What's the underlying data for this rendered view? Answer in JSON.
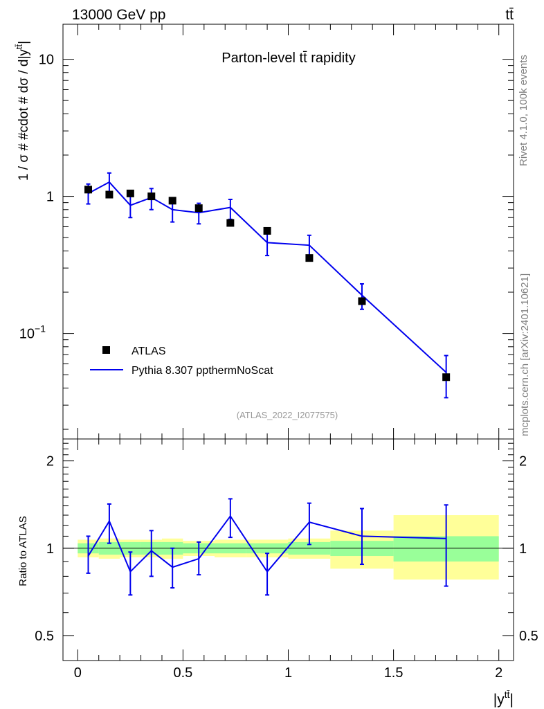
{
  "header": {
    "energy_label": "13000 GeV pp",
    "process_label": "tt̄"
  },
  "side_text": {
    "rivet": "Rivet 4.1.0,  100k events",
    "mcplots": "mcplots.cern.ch [arXiv:2401.10621]"
  },
  "colors": {
    "data_marker": "#000000",
    "mc_line": "#0000ee",
    "band_inner": "#99ff99",
    "band_outer": "#ffff99",
    "ref_text": "#999999",
    "side_text": "#808080"
  },
  "chart_data": [
    {
      "type": "scatter",
      "panel": "main",
      "title": "Parton-level tt̄ rapidity",
      "ylabel": "1 / σ # #cdot # dσ / d|y^{tt̄}|",
      "ylabel_display": "1 / σ # #cdot # dσ / d|y",
      "ylabel_sup": "tt̄",
      "ylabel_end": "|",
      "xlabel": "|y^{tt̄}|",
      "xlabel_main": "|y",
      "xlabel_sup": "tt̄",
      "xlabel_end": "|",
      "yscale": "log",
      "xlim": [
        -0.07,
        2.07
      ],
      "ylim": [
        0.017,
        18
      ],
      "yticks": [
        {
          "value": 0.1,
          "base": "10",
          "exp": "−1"
        },
        {
          "value": 1,
          "base": "1",
          "exp": ""
        },
        {
          "value": 10,
          "base": "10",
          "exp": ""
        }
      ],
      "reference_label": "(ATLAS_2022_I2077575)",
      "legend_position": "lower-left",
      "legend": [
        {
          "name": "ATLAS",
          "kind": "marker"
        },
        {
          "name": "Pythia 8.307 ppthermNoScat",
          "kind": "line"
        }
      ],
      "series": [
        {
          "name": "ATLAS",
          "x": [
            0.05,
            0.15,
            0.25,
            0.35,
            0.45,
            0.575,
            0.725,
            0.9,
            1.1,
            1.35,
            1.75
          ],
          "y": [
            1.12,
            1.03,
            1.05,
            1.0,
            0.93,
            0.82,
            0.64,
            0.56,
            0.355,
            0.172,
            0.048
          ]
        },
        {
          "name": "Pythia 8.307 ppthermNoScat",
          "x": [
            0.05,
            0.15,
            0.25,
            0.35,
            0.45,
            0.575,
            0.725,
            0.9,
            1.1,
            1.35,
            1.75
          ],
          "y": [
            1.05,
            1.27,
            0.86,
            0.98,
            0.8,
            0.76,
            0.83,
            0.46,
            0.44,
            0.19,
            0.052
          ],
          "yerr_low": [
            0.88,
            1.06,
            0.7,
            0.8,
            0.65,
            0.63,
            0.68,
            0.37,
            0.35,
            0.15,
            0.034
          ],
          "yerr_high": [
            1.23,
            1.48,
            1.03,
            1.14,
            0.96,
            0.89,
            0.95,
            0.55,
            0.52,
            0.23,
            0.069
          ]
        }
      ]
    },
    {
      "type": "line",
      "panel": "ratio",
      "ylabel": "Ratio to ATLAS",
      "xlabel": "|y^{tt̄}|",
      "xlim": [
        -0.07,
        2.07
      ],
      "ylim": [
        0.41,
        2.38
      ],
      "yscale": "log",
      "xticks": [
        0,
        0.5,
        1,
        1.5,
        2
      ],
      "xtick_labels": [
        "0",
        "0.5",
        "1",
        "1.5",
        "2"
      ],
      "yticks": [
        0.5,
        1,
        2
      ],
      "ytick_labels": [
        "0.5",
        "1",
        "2"
      ],
      "bands": {
        "edges": [
          0,
          0.1,
          0.2,
          0.3,
          0.4,
          0.5,
          0.65,
          0.8,
          1.0,
          1.2,
          1.5,
          2.0
        ],
        "inner_low": [
          0.96,
          0.95,
          0.95,
          0.95,
          0.95,
          0.96,
          0.96,
          0.96,
          0.95,
          0.94,
          0.9
        ],
        "inner_high": [
          1.04,
          1.05,
          1.05,
          1.05,
          1.05,
          1.04,
          1.04,
          1.04,
          1.05,
          1.06,
          1.1
        ],
        "outer_low": [
          0.93,
          0.92,
          0.93,
          0.93,
          0.92,
          0.94,
          0.93,
          0.93,
          0.92,
          0.85,
          0.78
        ],
        "outer_high": [
          1.07,
          1.08,
          1.07,
          1.07,
          1.08,
          1.06,
          1.07,
          1.07,
          1.08,
          1.15,
          1.3
        ]
      },
      "series": [
        {
          "name": "Pythia 8.307 ppthermNoScat / ATLAS",
          "x": [
            0.05,
            0.15,
            0.25,
            0.35,
            0.45,
            0.575,
            0.725,
            0.9,
            1.1,
            1.35,
            1.75
          ],
          "y": [
            0.94,
            1.24,
            0.83,
            0.98,
            0.86,
            0.92,
            1.29,
            0.83,
            1.23,
            1.1,
            1.08
          ],
          "yerr_low": [
            0.82,
            1.04,
            0.69,
            0.8,
            0.73,
            0.81,
            1.09,
            0.69,
            1.03,
            0.88,
            0.74
          ],
          "yerr_high": [
            1.1,
            1.42,
            0.97,
            1.15,
            1.0,
            1.05,
            1.48,
            0.96,
            1.43,
            1.37,
            1.41
          ]
        }
      ]
    }
  ]
}
